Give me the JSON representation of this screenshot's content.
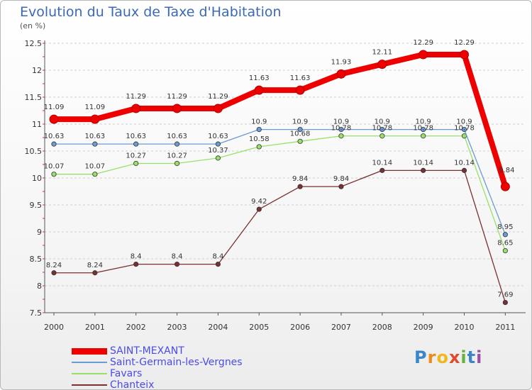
{
  "chart_data": {
    "type": "line",
    "title": "Evolution du Taux de Taxe d'Habitation",
    "subtitle": "(en %)",
    "x": [
      "2000",
      "2001",
      "2002",
      "2003",
      "2004",
      "2005",
      "2006",
      "2007",
      "2008",
      "2009",
      "2010",
      "2011"
    ],
    "yticks": [
      "7.5",
      "8",
      "8.5",
      "9",
      "9.5",
      "10",
      "10.5",
      "11",
      "11.5",
      "12",
      "12.5"
    ],
    "ylim": [
      7.5,
      12.5
    ],
    "grid": "horizontal dashed",
    "legend_position": "bottom-left",
    "series": [
      {
        "name": "SAINT-MEXANT",
        "color": "#ee0000",
        "values": [
          11.09,
          11.09,
          11.29,
          11.29,
          11.29,
          11.63,
          11.63,
          11.93,
          12.11,
          12.29,
          12.29,
          9.84
        ],
        "labels": [
          "11.09",
          "11.09",
          "11.29",
          "11.29",
          "11.29",
          "11.63",
          "11.63",
          "11.93",
          "12.11",
          "12.29",
          "12.29",
          "9.84"
        ]
      },
      {
        "name": "Saint-Germain-les-Vergnes",
        "color": "#6b9bd1",
        "values": [
          10.63,
          10.63,
          10.63,
          10.63,
          10.63,
          10.9,
          10.9,
          10.9,
          10.9,
          10.9,
          10.9,
          8.95
        ],
        "labels": [
          "10.63",
          "10.63",
          "10.63",
          "10.63",
          "10.63",
          "10.9",
          "10.9",
          "10.9",
          "10.9",
          "10.9",
          "10.9",
          "8.95"
        ]
      },
      {
        "name": "Favars",
        "color": "#99e066",
        "values": [
          10.07,
          10.07,
          10.27,
          10.27,
          10.37,
          10.58,
          10.68,
          10.78,
          10.78,
          10.78,
          10.78,
          8.65
        ],
        "labels": [
          "10.07",
          "10.07",
          "10.27",
          "10.27",
          "10.37",
          "10.58",
          "10.68",
          "10.78",
          "10.78",
          "10.78",
          "10.78",
          "8.65"
        ]
      },
      {
        "name": "Chanteix",
        "color": "#7a3030",
        "values": [
          8.24,
          8.24,
          8.4,
          8.4,
          8.4,
          9.42,
          9.84,
          9.84,
          10.14,
          10.14,
          10.14,
          7.69
        ],
        "labels": [
          "8.24",
          "8.24",
          "8.4",
          "8.4",
          "8.4",
          "9.42",
          "9.84",
          "9.84",
          "10.14",
          "10.14",
          "10.14",
          "7.69"
        ]
      }
    ]
  },
  "logo": {
    "letters": [
      "P",
      "r",
      "o",
      "x",
      "i",
      "t",
      "i"
    ],
    "colors": [
      "#3a86c8",
      "#f08a1c",
      "#f0b81c",
      "#e24a2c",
      "#63b33d",
      "#3a86c8",
      "#9c4fa5"
    ]
  }
}
